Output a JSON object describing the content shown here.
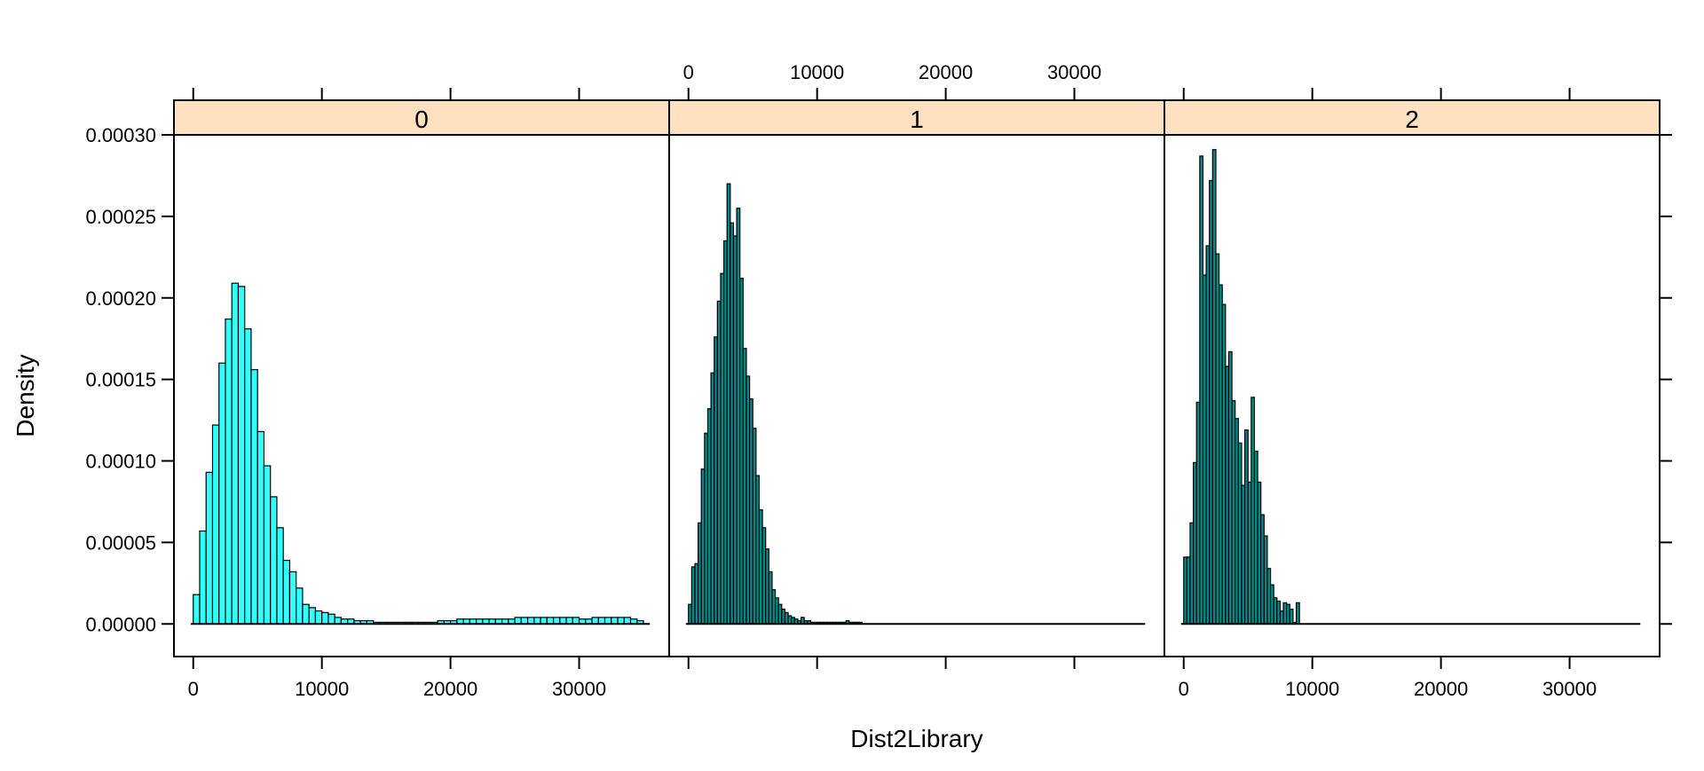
{
  "chart_data": {
    "type": "bar",
    "subtype": "lattice-histogram",
    "xlabel": "Dist2Library",
    "ylabel": "Density",
    "xlim": [
      -1500,
      37000
    ],
    "ylim": [
      -2e-05,
      0.0003
    ],
    "x_ticks": [
      0,
      10000,
      20000,
      30000
    ],
    "x_tick_labels": [
      "0",
      "10000",
      "20000",
      "30000"
    ],
    "y_ticks": [
      0,
      5e-05,
      0.0001,
      0.00015,
      0.0002,
      0.00025,
      0.0003
    ],
    "y_tick_labels": [
      "0.00000",
      "0.00005",
      "0.00010",
      "0.00015",
      "0.00020",
      "0.00025",
      "0.00030"
    ],
    "grid": false,
    "legend": "none",
    "strip_color": "#ffe0c0",
    "panels": [
      {
        "strip_label": "0",
        "bar_color": "#33ffff",
        "bin_start": 0,
        "bin_width": 500,
        "densities": [
          1.8e-05,
          5.7e-05,
          9.3e-05,
          0.000122,
          0.00016,
          0.000187,
          0.000209,
          0.000207,
          0.000181,
          0.000156,
          0.000118,
          9.7e-05,
          7.8e-05,
          5.9e-05,
          3.9e-05,
          3.2e-05,
          2.2e-05,
          1.2e-05,
          1e-05,
          8e-06,
          7e-06,
          6e-06,
          4e-06,
          3e-06,
          3e-06,
          2e-06,
          2e-06,
          2e-06,
          1e-06,
          1e-06,
          1e-06,
          1e-06,
          1e-06,
          1e-06,
          1e-06,
          1e-06,
          1e-06,
          1e-06,
          2e-06,
          2e-06,
          2e-06,
          3e-06,
          3e-06,
          3e-06,
          3e-06,
          3e-06,
          3e-06,
          3e-06,
          3e-06,
          3e-06,
          4e-06,
          4e-06,
          4e-06,
          4e-06,
          4e-06,
          4e-06,
          4e-06,
          4e-06,
          4e-06,
          4e-06,
          3e-06,
          3e-06,
          4e-06,
          4e-06,
          4e-06,
          4e-06,
          4e-06,
          4e-06,
          3e-06,
          2e-06
        ]
      },
      {
        "strip_label": "1",
        "bar_color": "#008b8b",
        "bin_start": 0,
        "bin_width": 250,
        "densities": [
          1.2e-05,
          3.5e-05,
          3.7e-05,
          6.2e-05,
          9.5e-05,
          0.000117,
          0.000132,
          0.000154,
          0.000176,
          0.000198,
          0.000215,
          0.000235,
          0.00027,
          0.000246,
          0.000238,
          0.000255,
          0.000212,
          0.000169,
          0.000152,
          0.000138,
          0.00012,
          9.1e-05,
          7e-05,
          5.9e-05,
          4.6e-05,
          3.2e-05,
          2.1e-05,
          1.6e-05,
          1.2e-05,
          9e-06,
          7e-06,
          5e-06,
          4e-06,
          3e-06,
          2e-06,
          4e-06,
          2e-06,
          2e-06,
          1e-06,
          1e-06,
          1e-06,
          1e-06,
          1e-06,
          1e-06,
          1e-06,
          1e-06,
          1e-06,
          1e-06,
          1e-06,
          2e-06,
          1e-06,
          1e-06,
          1e-06,
          1e-06
        ]
      },
      {
        "strip_label": "2",
        "bar_color": "#008b8b",
        "bin_start": 0,
        "bin_width": 250,
        "densities": [
          4.1e-05,
          4.1e-05,
          6.2e-05,
          9.9e-05,
          0.000136,
          0.000287,
          0.000214,
          0.000232,
          0.000272,
          0.000291,
          0.000227,
          0.000208,
          0.000196,
          0.000158,
          0.000167,
          0.000137,
          0.000126,
          0.000111,
          8.5e-05,
          0.000119,
          8.7e-05,
          0.000139,
          0.000106,
          8.7e-05,
          6.7e-05,
          5.4e-05,
          3.4e-05,
          2.4e-05,
          1.6e-05,
          1.4e-05,
          8e-06,
          1.3e-05,
          1.2e-05,
          9e-06,
          1e-06,
          1.3e-05
        ]
      }
    ]
  }
}
